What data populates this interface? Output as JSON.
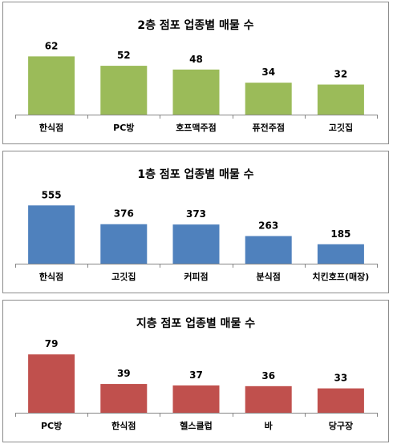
{
  "chart_data": [
    {
      "type": "bar",
      "title": "2층 점포 업종별 매물 수",
      "categories": [
        "한식점",
        "PC방",
        "호프맥주점",
        "퓨전주점",
        "고깃집"
      ],
      "values": [
        62,
        52,
        48,
        34,
        32
      ],
      "color": "#9bbb59",
      "data_labels": true,
      "grid": false,
      "ylim": [
        0,
        70
      ]
    },
    {
      "type": "bar",
      "title": "1층 점포 업종별 매물 수",
      "categories": [
        "한식점",
        "고깃집",
        "커피점",
        "분식점",
        "치킨호프(매장)"
      ],
      "values": [
        555,
        376,
        373,
        263,
        185
      ],
      "color": "#4f81bd",
      "data_labels": true,
      "grid": false,
      "ylim": [
        0,
        626
      ]
    },
    {
      "type": "bar",
      "title": "지층 점포 업종별 매물 수",
      "categories": [
        "PC방",
        "한식점",
        "헬스클럽",
        "바",
        "당구장"
      ],
      "values": [
        79,
        39,
        37,
        36,
        33
      ],
      "color": "#c0504d",
      "data_labels": true,
      "grid": false,
      "ylim": [
        0,
        89
      ]
    }
  ]
}
